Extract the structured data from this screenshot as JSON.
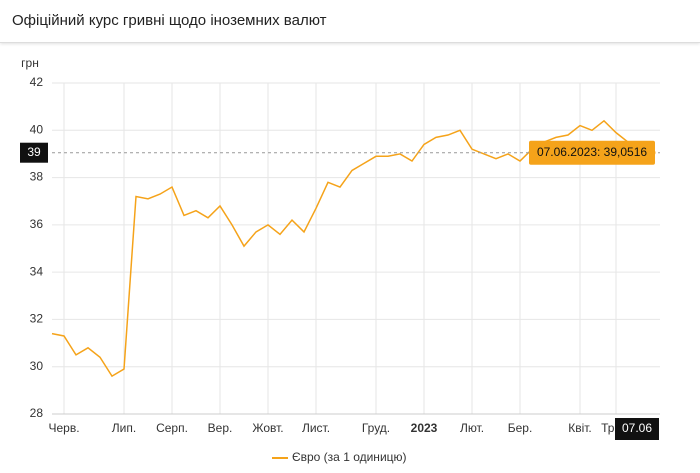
{
  "chart_data": {
    "type": "line",
    "title": "Офіційний курс гривні щодо іноземних валют",
    "y_label": "грн",
    "categories": [
      null,
      "Черв.",
      null,
      null,
      null,
      null,
      "Лип.",
      null,
      null,
      null,
      "Серп.",
      null,
      null,
      null,
      "Вер.",
      null,
      null,
      null,
      "Жовт.",
      null,
      null,
      null,
      "Лист.",
      null,
      null,
      null,
      null,
      "Груд.",
      null,
      null,
      null,
      "2023",
      null,
      null,
      null,
      "Лют.",
      null,
      null,
      null,
      "Бер.",
      null,
      null,
      null,
      null,
      "Квіт.",
      null,
      null,
      "Трав.",
      null,
      null,
      null
    ],
    "series": [
      {
        "name": "Євро (за 1 одиницю)",
        "color": "#f5a31a",
        "values": [
          31.4,
          31.3,
          30.5,
          30.8,
          30.4,
          29.6,
          29.9,
          37.2,
          37.1,
          37.3,
          37.6,
          36.4,
          36.6,
          36.3,
          36.8,
          36.0,
          35.1,
          35.7,
          36.0,
          35.6,
          36.2,
          35.7,
          36.7,
          37.8,
          37.6,
          38.3,
          38.6,
          38.9,
          38.9,
          39.0,
          38.7,
          39.4,
          39.7,
          39.8,
          40.0,
          39.2,
          39.0,
          38.8,
          39.0,
          38.7,
          39.2,
          39.5,
          39.7,
          39.8,
          40.2,
          40.0,
          40.4,
          39.9,
          39.5,
          39.3,
          39.0516
        ]
      }
    ],
    "ylim": [
      28,
      42
    ],
    "yticks": [
      28,
      30,
      32,
      34,
      36,
      38,
      40,
      42
    ],
    "grid": true,
    "crosshair": {
      "y_label": "39",
      "x_label": "07.06",
      "tooltip": "07.06.2023: 39,0516"
    }
  }
}
